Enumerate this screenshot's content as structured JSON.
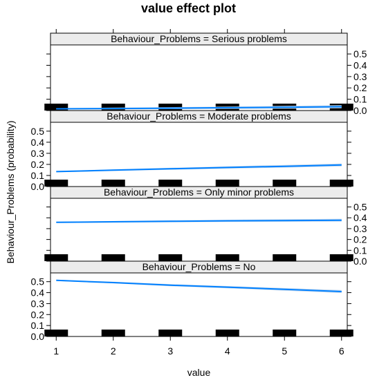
{
  "chart_data": {
    "type": "line",
    "title": "value effect plot",
    "xlabel": "value",
    "ylabel": "Behaviour_Problems (probability)",
    "xlim": [
      0.9,
      6.1
    ],
    "ylim": [
      0,
      0.58
    ],
    "x_ticks": [
      1,
      2,
      3,
      4,
      5,
      6
    ],
    "y_ticks": [
      0.0,
      0.1,
      0.2,
      0.3,
      0.4,
      0.5
    ],
    "y_tick_labels": [
      "0.0",
      "0.1",
      "0.2",
      "0.3",
      "0.4",
      "0.5"
    ],
    "grid": false,
    "colors": {
      "line": "#0080ff",
      "band": "#c5d9ee",
      "strip": "#ececec",
      "rug": "#000000"
    },
    "rug_x": [
      1,
      2,
      3,
      4,
      5,
      6
    ],
    "panels": [
      {
        "strip_label": "Behaviour_Problems = Serious problems",
        "axis_side": "right",
        "x": [
          1,
          2,
          3,
          4,
          5,
          6
        ],
        "values": [
          0.015,
          0.018,
          0.021,
          0.025,
          0.029,
          0.034
        ]
      },
      {
        "strip_label": "Behaviour_Problems = Moderate problems",
        "axis_side": "left",
        "x": [
          1,
          2,
          3,
          4,
          5,
          6
        ],
        "values": [
          0.135,
          0.148,
          0.16,
          0.172,
          0.183,
          0.195
        ]
      },
      {
        "strip_label": "Behaviour_Problems = Only minor problems",
        "axis_side": "right",
        "x": [
          1,
          2,
          3,
          4,
          5,
          6
        ],
        "values": [
          0.358,
          0.363,
          0.368,
          0.372,
          0.375,
          0.378
        ]
      },
      {
        "strip_label": "Behaviour_Problems = No",
        "axis_side": "left",
        "x": [
          1,
          2,
          3,
          4,
          5,
          6
        ],
        "values": [
          0.512,
          0.492,
          0.468,
          0.45,
          0.43,
          0.41
        ]
      }
    ]
  }
}
